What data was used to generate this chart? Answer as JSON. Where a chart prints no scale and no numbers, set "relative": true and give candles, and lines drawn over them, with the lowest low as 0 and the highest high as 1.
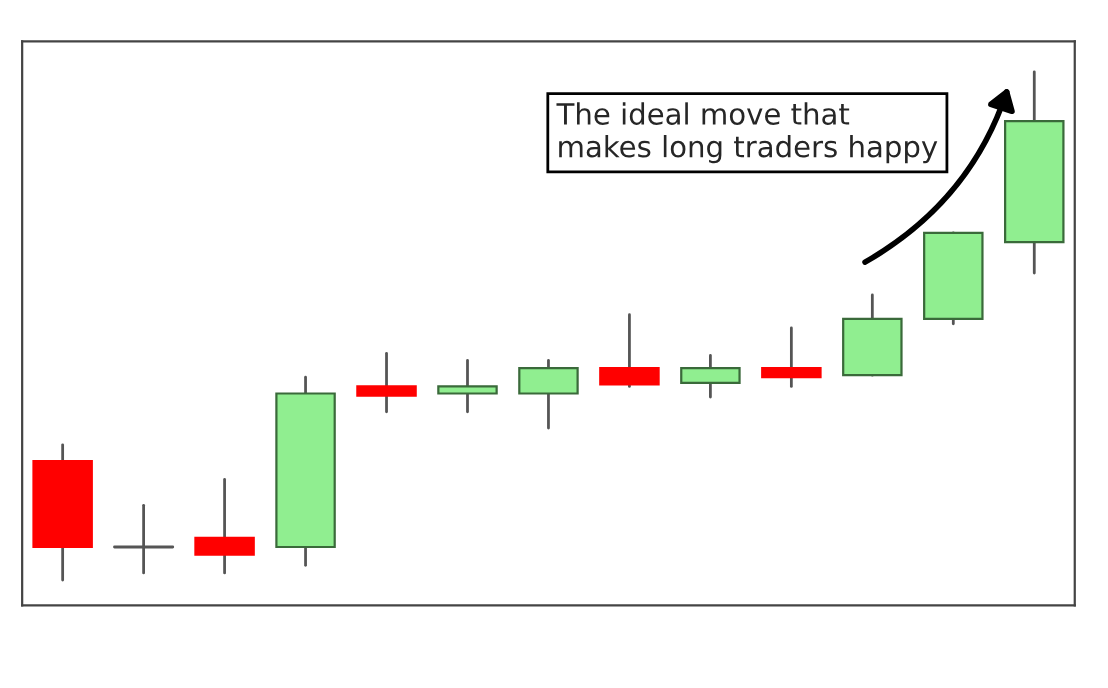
{
  "chart_data": {
    "type": "candlestick",
    "relative": true,
    "grid": false,
    "categories": [
      null,
      null,
      null,
      null,
      null,
      null,
      null,
      null,
      null,
      null,
      null,
      null,
      null
    ],
    "ohlc": [
      [
        0.234,
        0.266,
        0,
        0.065
      ],
      [
        0.065,
        0.147,
        0.014,
        0.065
      ],
      [
        0.083,
        0.198,
        0.014,
        0.05
      ],
      [
        0.065,
        0.399,
        0.029,
        0.367
      ],
      [
        0.381,
        0.446,
        0.331,
        0.363
      ],
      [
        0.367,
        0.432,
        0.331,
        0.381
      ],
      [
        0.367,
        0.432,
        0.299,
        0.417
      ],
      [
        0.417,
        0.522,
        0.381,
        0.385
      ],
      [
        0.388,
        0.442,
        0.36,
        0.417
      ],
      [
        0.417,
        0.496,
        0.381,
        0.399
      ],
      [
        0.403,
        0.561,
        0.403,
        0.514
      ],
      [
        0.514,
        0.683,
        0.504,
        0.683
      ],
      [
        0.665,
        1,
        0.604,
        0.903
      ]
    ],
    "colors": [
      "#ff0000",
      "#555555",
      "#ff0000",
      "#90ee90",
      "#ff0000",
      "#90ee90",
      "#90ee90",
      "#ff0000",
      "#90ee90",
      "#ff0000",
      "#90ee90",
      "#90ee90",
      "#90ee90"
    ],
    "annotations": [
      "The ideal move that\nmakes long traders happy"
    ]
  }
}
